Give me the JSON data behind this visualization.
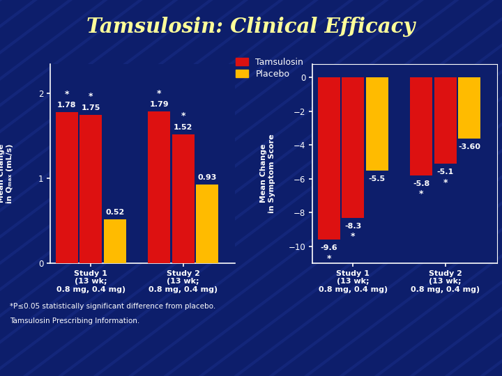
{
  "title": "Tamsulosin: Clinical Efficacy",
  "title_color": "#FFFF99",
  "bg_color": "#0d1e6b",
  "bar_color_tamsulosin": "#dd1111",
  "bar_color_placebo": "#ffbb00",
  "left_chart": {
    "ylabel": "Mean Change\nin Qₘₐₓ (mL/s)",
    "ylim": [
      0,
      2.35
    ],
    "yticks": [
      0,
      1,
      2
    ],
    "groups": [
      "Study 1\n(13 wk;\n0.8 mg, 0.4 mg)",
      "Study 2\n(13 wk;\n0.8 mg, 0.4 mg)"
    ],
    "tam1_values": [
      1.78,
      1.79
    ],
    "tam2_values": [
      1.75,
      1.52
    ],
    "placebo_values": [
      0.52,
      0.93
    ],
    "tam1_labels": [
      "1.78",
      "1.79"
    ],
    "tam2_labels": [
      "1.75",
      "1.52"
    ],
    "placebo_labels": [
      "0.52",
      "0.93"
    ],
    "tam1_star": [
      true,
      true
    ],
    "tam2_star": [
      true,
      true
    ],
    "placebo_star": [
      false,
      false
    ]
  },
  "right_chart": {
    "ylabel": "Mean Change\nin Symptom Score",
    "ylim": [
      -11.0,
      0.8
    ],
    "yticks": [
      0,
      -2,
      -4,
      -6,
      -8,
      -10
    ],
    "groups": [
      "Study 1\n(13 wk;\n0.8 mg, 0.4 mg)",
      "Study 2\n(13 wk;\n0.8 mg, 0.4 mg)"
    ],
    "tam1_values": [
      -9.6,
      -5.8
    ],
    "tam2_values": [
      -8.3,
      -5.1
    ],
    "placebo_values": [
      -5.5,
      -3.6
    ],
    "tam1_labels": [
      "-9.6",
      "-5.8"
    ],
    "tam2_labels": [
      "-8.3",
      "-5.1"
    ],
    "placebo_labels": [
      "-5.5",
      "-3.60"
    ],
    "tam1_star": [
      true,
      true
    ],
    "tam2_star": [
      true,
      true
    ],
    "placebo_star": [
      false,
      false
    ]
  },
  "legend_tamsulosin": "Tamsulosin",
  "legend_placebo": "Placebo",
  "footnote1": "*P≤0.05 statistically significant difference from placebo.",
  "footnote2": "Tamsulosin Prescribing Information."
}
